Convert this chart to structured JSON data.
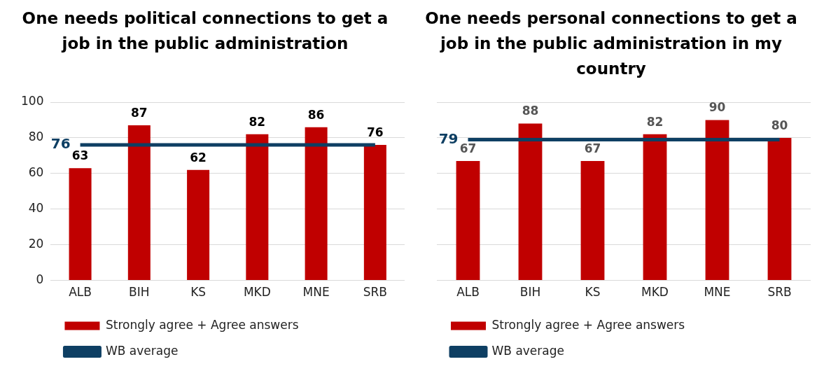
{
  "chart_data": [
    {
      "type": "bar",
      "title": "One needs political connections to get a job in the public administration",
      "categories": [
        "ALB",
        "BIH",
        "KS",
        "MKD",
        "MNE",
        "SRB"
      ],
      "series": [
        {
          "name": "Strongly agree + Agree answers",
          "color": "#c00000",
          "values": [
            63,
            87,
            62,
            82,
            86,
            76
          ],
          "value_labels": [
            "63",
            "87",
            "62",
            "82",
            "86",
            "76"
          ]
        },
        {
          "name": "WB average",
          "type": "line",
          "color": "#0e3f63",
          "values": [
            76,
            76,
            76,
            76,
            76,
            76
          ],
          "value_labels": [
            "76",
            null,
            null,
            null,
            null,
            null
          ]
        }
      ],
      "ylim": [
        0,
        100
      ],
      "yticks": [
        0,
        20,
        40,
        60,
        80,
        100
      ],
      "grid": "y",
      "legend": "bottom",
      "marker": "none"
    },
    {
      "type": "bar",
      "title": "One needs personal connections to get a job in the public administration in my country",
      "categories": [
        "ALB",
        "BIH",
        "KS",
        "MKD",
        "MNE",
        "SRB"
      ],
      "series": [
        {
          "name": "Strongly agree + Agree answers",
          "color": "#c00000",
          "values": [
            67,
            88,
            67,
            82,
            90,
            80
          ],
          "value_labels": [
            "67",
            "88",
            "67",
            "82",
            "90",
            "80"
          ]
        },
        {
          "name": "WB average",
          "type": "line",
          "color": "#0e3f63",
          "values": [
            79,
            79,
            79,
            79,
            79,
            79
          ],
          "value_labels": [
            "79",
            null,
            null,
            null,
            null,
            null
          ]
        }
      ],
      "ylim": [
        0,
        100
      ],
      "yticks": [
        0,
        20,
        40,
        60,
        80,
        100
      ],
      "grid": "y",
      "legend": "bottom",
      "marker": "none",
      "tick_labels": "x"
    }
  ]
}
